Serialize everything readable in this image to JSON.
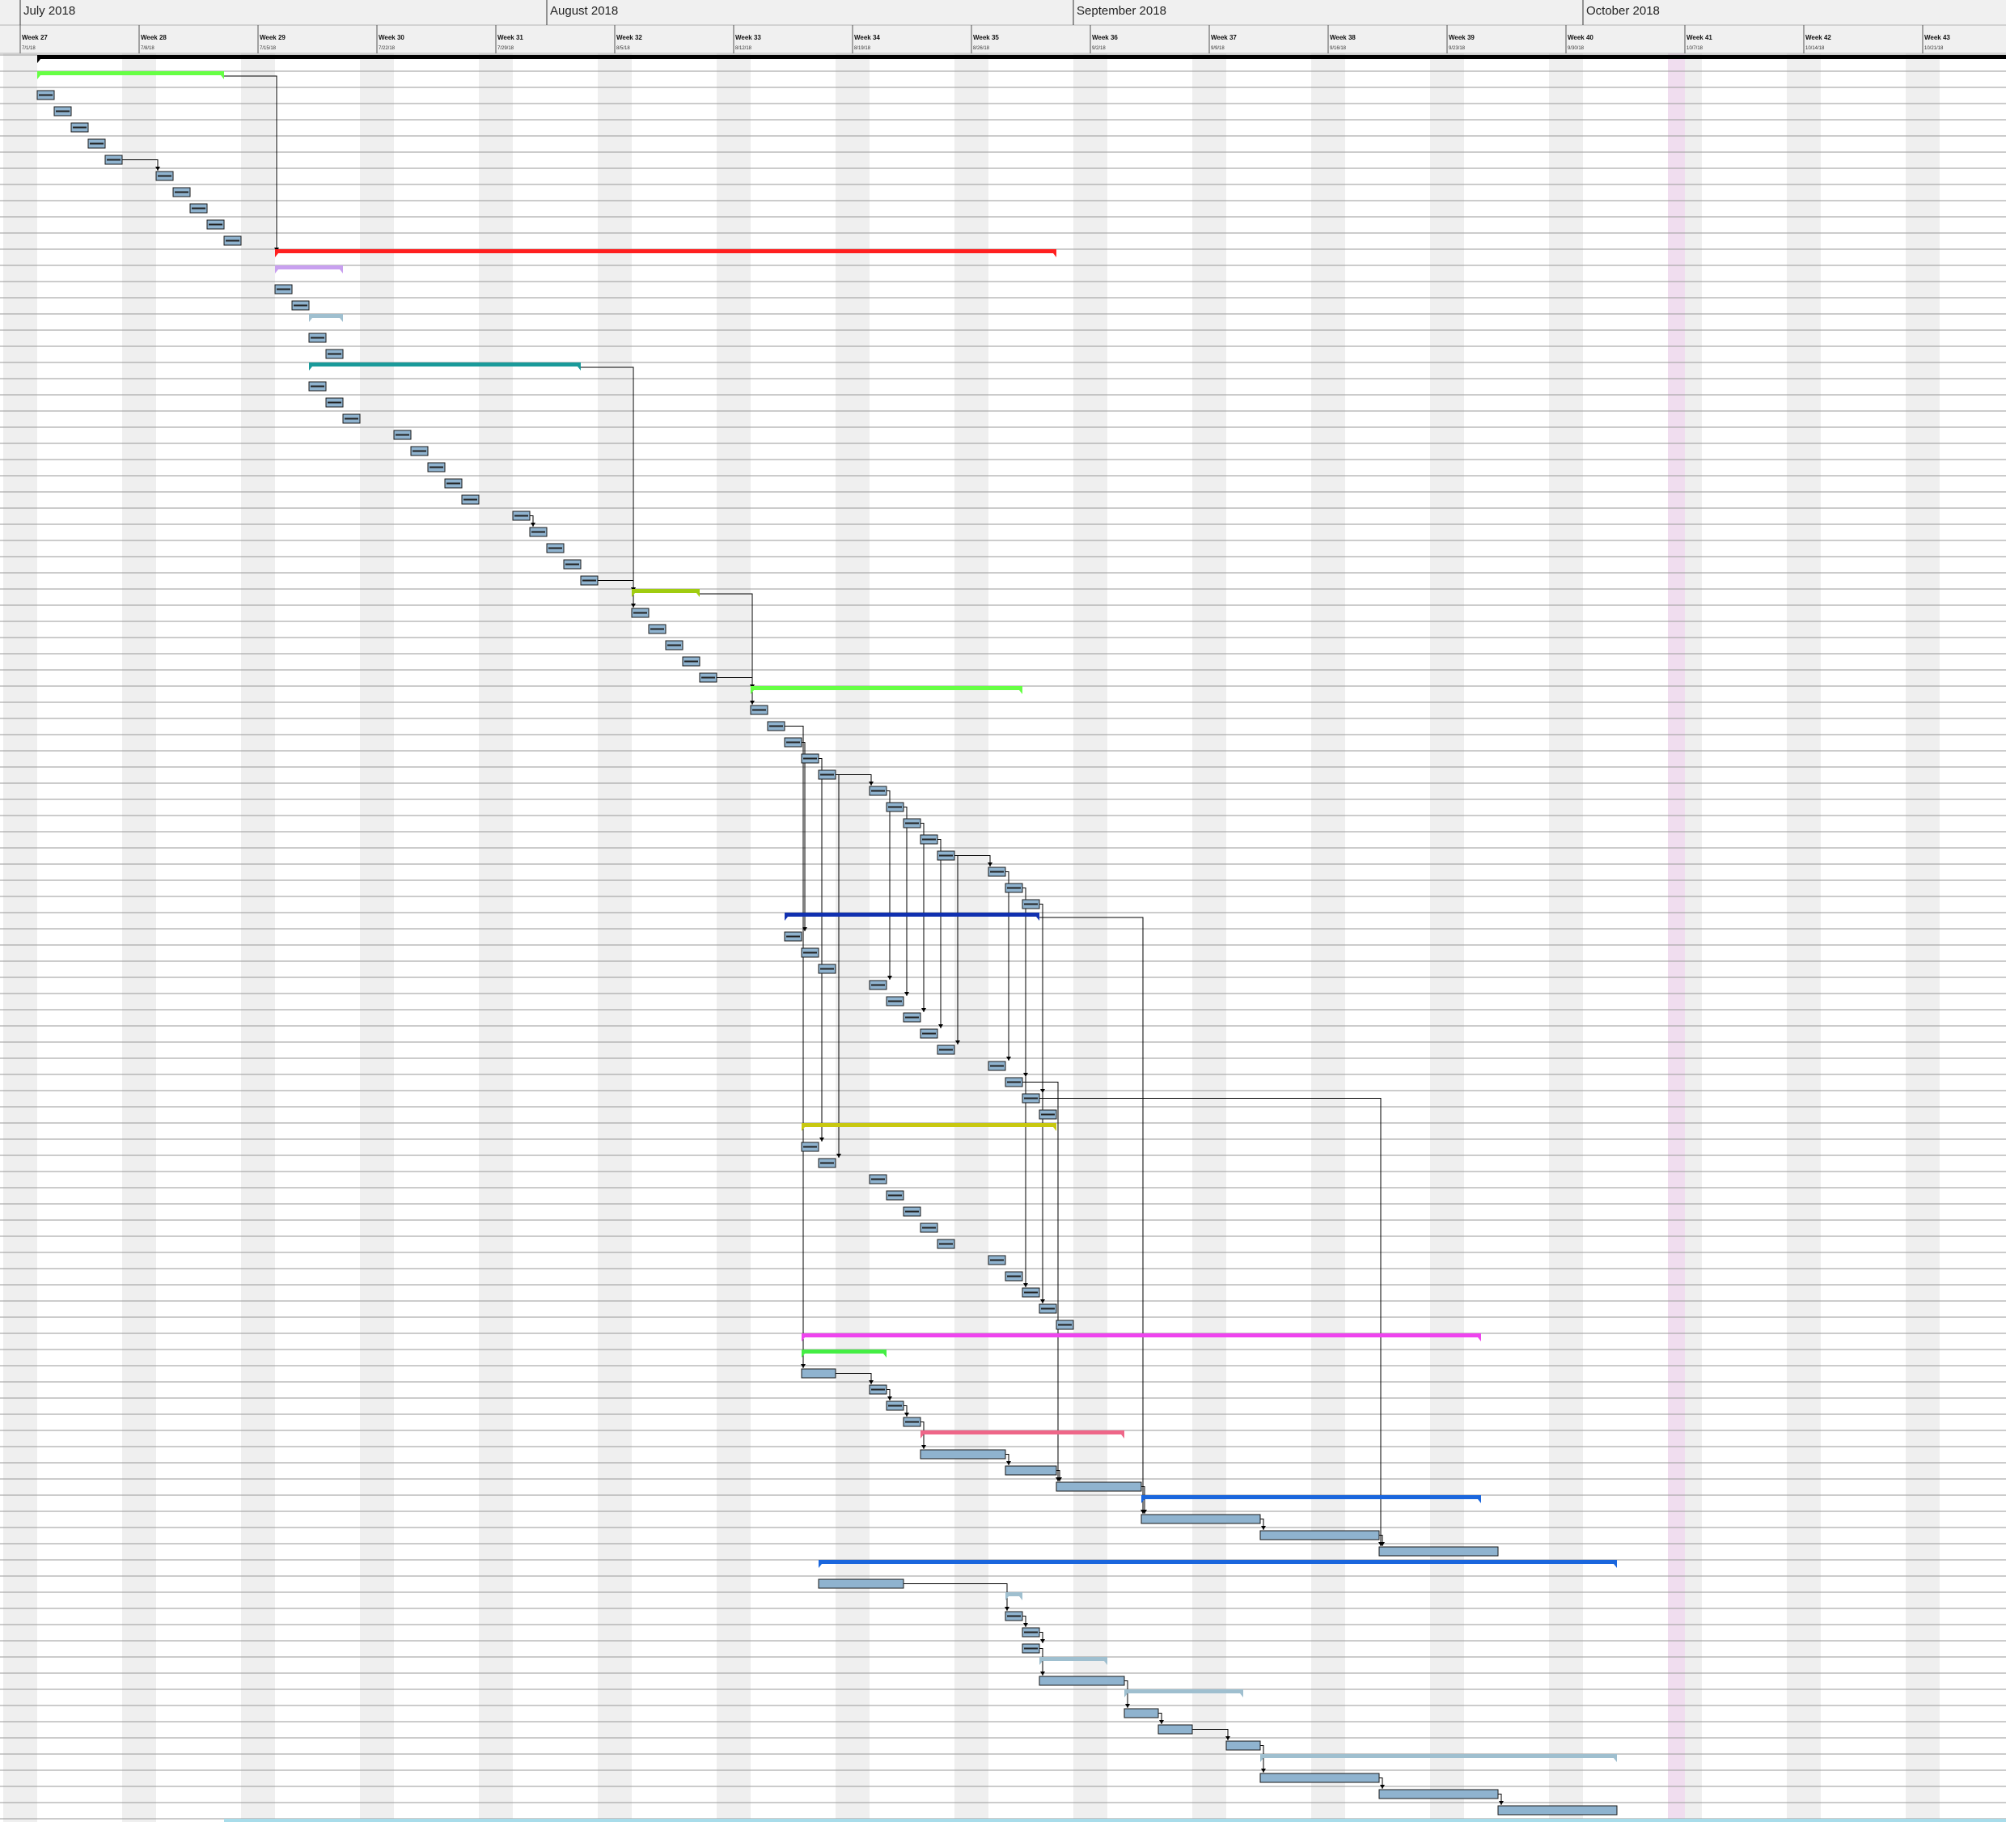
{
  "timeline": {
    "months": [
      {
        "label": "July 2018",
        "date": "2018-07-01"
      },
      {
        "label": "August 2018",
        "date": "2018-08-01"
      },
      {
        "label": "September 2018",
        "date": "2018-09-01"
      },
      {
        "label": "October 2018",
        "date": "2018-10-01"
      }
    ],
    "weeks": [
      {
        "label": "Week 27",
        "date_label": "7/1/18",
        "date": "2018-07-01"
      },
      {
        "label": "Week 28",
        "date_label": "7/8/18",
        "date": "2018-07-08"
      },
      {
        "label": "Week 29",
        "date_label": "7/15/18",
        "date": "2018-07-15"
      },
      {
        "label": "Week 30",
        "date_label": "7/22/18",
        "date": "2018-07-22"
      },
      {
        "label": "Week 31",
        "date_label": "7/29/18",
        "date": "2018-07-29"
      },
      {
        "label": "Week 32",
        "date_label": "8/5/18",
        "date": "2018-08-05"
      },
      {
        "label": "Week 33",
        "date_label": "8/12/18",
        "date": "2018-08-12"
      },
      {
        "label": "Week 34",
        "date_label": "8/19/18",
        "date": "2018-08-19"
      },
      {
        "label": "Week 35",
        "date_label": "8/26/18",
        "date": "2018-08-26"
      },
      {
        "label": "Week 36",
        "date_label": "9/2/18",
        "date": "2018-09-02"
      },
      {
        "label": "Week 37",
        "date_label": "9/9/18",
        "date": "2018-09-09"
      },
      {
        "label": "Week 38",
        "date_label": "9/16/18",
        "date": "2018-09-16"
      },
      {
        "label": "Week 39",
        "date_label": "9/23/18",
        "date": "2018-09-23"
      },
      {
        "label": "Week 40",
        "date_label": "9/30/18",
        "date": "2018-09-30"
      },
      {
        "label": "Week 41",
        "date_label": "10/7/18",
        "date": "2018-10-07"
      },
      {
        "label": "Week 42",
        "date_label": "10/14/18",
        "date": "2018-10-14"
      },
      {
        "label": "Week 43",
        "date_label": "10/21/18",
        "date": "2018-10-21"
      }
    ]
  },
  "colors": {
    "task_fill": "#8fb3cf",
    "task_stroke": "#1a1a1a",
    "weekend_shade": "#efefef",
    "today_marker": "#f0ddef",
    "header_bg": "#f0f0f0",
    "row_line": "#9a9a9a",
    "link": "#000000"
  },
  "chart_data": {
    "type": "gantt",
    "title": "",
    "xlabel": "",
    "ylabel": "",
    "xlim": [
      "2018-07-01",
      "2018-10-27"
    ],
    "grid": true,
    "legend": "none",
    "marker_date": "2018-10-06",
    "tasks": [
      {
        "row": 0,
        "kind": "project",
        "start": "2018-07-02",
        "end": "2018-10-27",
        "color": "#000000"
      },
      {
        "row": 1,
        "kind": "summary",
        "start": "2018-07-02",
        "end": "2018-07-13",
        "color": "#66ff44"
      },
      {
        "row": 2,
        "kind": "task",
        "start": "2018-07-02",
        "end": "2018-07-03"
      },
      {
        "row": 3,
        "kind": "task",
        "start": "2018-07-03",
        "end": "2018-07-04"
      },
      {
        "row": 4,
        "kind": "task",
        "start": "2018-07-04",
        "end": "2018-07-05"
      },
      {
        "row": 5,
        "kind": "task",
        "start": "2018-07-05",
        "end": "2018-07-06"
      },
      {
        "row": 6,
        "kind": "task",
        "start": "2018-07-06",
        "end": "2018-07-07"
      },
      {
        "row": 7,
        "kind": "task",
        "start": "2018-07-09",
        "end": "2018-07-10"
      },
      {
        "row": 8,
        "kind": "task",
        "start": "2018-07-10",
        "end": "2018-07-11"
      },
      {
        "row": 9,
        "kind": "task",
        "start": "2018-07-11",
        "end": "2018-07-12"
      },
      {
        "row": 10,
        "kind": "task",
        "start": "2018-07-12",
        "end": "2018-07-13"
      },
      {
        "row": 11,
        "kind": "task",
        "start": "2018-07-13",
        "end": "2018-07-14"
      },
      {
        "row": 12,
        "kind": "summary",
        "start": "2018-07-16",
        "end": "2018-08-31",
        "color": "#ff2020"
      },
      {
        "row": 13,
        "kind": "summary",
        "start": "2018-07-16",
        "end": "2018-07-20",
        "color": "#c8a0ef"
      },
      {
        "row": 14,
        "kind": "task",
        "start": "2018-07-16",
        "end": "2018-07-17"
      },
      {
        "row": 15,
        "kind": "task",
        "start": "2018-07-17",
        "end": "2018-07-18"
      },
      {
        "row": 16,
        "kind": "summary",
        "start": "2018-07-18",
        "end": "2018-07-20",
        "color": "#9fbfcf"
      },
      {
        "row": 17,
        "kind": "task",
        "start": "2018-07-18",
        "end": "2018-07-19"
      },
      {
        "row": 18,
        "kind": "task",
        "start": "2018-07-19",
        "end": "2018-07-20"
      },
      {
        "row": 19,
        "kind": "summary",
        "start": "2018-07-18",
        "end": "2018-08-03",
        "color": "#1a9a9a"
      },
      {
        "row": 20,
        "kind": "task",
        "start": "2018-07-18",
        "end": "2018-07-19"
      },
      {
        "row": 21,
        "kind": "task",
        "start": "2018-07-19",
        "end": "2018-07-20"
      },
      {
        "row": 22,
        "kind": "task",
        "start": "2018-07-20",
        "end": "2018-07-21"
      },
      {
        "row": 23,
        "kind": "task",
        "start": "2018-07-23",
        "end": "2018-07-24"
      },
      {
        "row": 24,
        "kind": "task",
        "start": "2018-07-24",
        "end": "2018-07-25"
      },
      {
        "row": 25,
        "kind": "task",
        "start": "2018-07-25",
        "end": "2018-07-26"
      },
      {
        "row": 26,
        "kind": "task",
        "start": "2018-07-26",
        "end": "2018-07-27"
      },
      {
        "row": 27,
        "kind": "task",
        "start": "2018-07-27",
        "end": "2018-07-28"
      },
      {
        "row": 28,
        "kind": "task",
        "start": "2018-07-30",
        "end": "2018-07-31"
      },
      {
        "row": 29,
        "kind": "task",
        "start": "2018-07-31",
        "end": "2018-08-01"
      },
      {
        "row": 30,
        "kind": "task",
        "start": "2018-08-01",
        "end": "2018-08-02"
      },
      {
        "row": 31,
        "kind": "task",
        "start": "2018-08-02",
        "end": "2018-08-03"
      },
      {
        "row": 32,
        "kind": "task",
        "start": "2018-08-03",
        "end": "2018-08-04"
      },
      {
        "row": 33,
        "kind": "summary",
        "start": "2018-08-06",
        "end": "2018-08-10",
        "color": "#a0cc10"
      },
      {
        "row": 34,
        "kind": "task",
        "start": "2018-08-06",
        "end": "2018-08-07"
      },
      {
        "row": 35,
        "kind": "task",
        "start": "2018-08-07",
        "end": "2018-08-08"
      },
      {
        "row": 36,
        "kind": "task",
        "start": "2018-08-08",
        "end": "2018-08-09"
      },
      {
        "row": 37,
        "kind": "task",
        "start": "2018-08-09",
        "end": "2018-08-10"
      },
      {
        "row": 38,
        "kind": "task",
        "start": "2018-08-10",
        "end": "2018-08-11"
      },
      {
        "row": 39,
        "kind": "summary",
        "start": "2018-08-13",
        "end": "2018-08-29",
        "color": "#66ff44"
      },
      {
        "row": 40,
        "kind": "task",
        "start": "2018-08-13",
        "end": "2018-08-14"
      },
      {
        "row": 41,
        "kind": "task",
        "start": "2018-08-14",
        "end": "2018-08-15"
      },
      {
        "row": 42,
        "kind": "task",
        "start": "2018-08-15",
        "end": "2018-08-16"
      },
      {
        "row": 43,
        "kind": "task",
        "start": "2018-08-16",
        "end": "2018-08-17"
      },
      {
        "row": 44,
        "kind": "task",
        "start": "2018-08-17",
        "end": "2018-08-18"
      },
      {
        "row": 45,
        "kind": "task",
        "start": "2018-08-20",
        "end": "2018-08-21"
      },
      {
        "row": 46,
        "kind": "task",
        "start": "2018-08-21",
        "end": "2018-08-22"
      },
      {
        "row": 47,
        "kind": "task",
        "start": "2018-08-22",
        "end": "2018-08-23"
      },
      {
        "row": 48,
        "kind": "task",
        "start": "2018-08-23",
        "end": "2018-08-24"
      },
      {
        "row": 49,
        "kind": "task",
        "start": "2018-08-24",
        "end": "2018-08-25"
      },
      {
        "row": 50,
        "kind": "task",
        "start": "2018-08-27",
        "end": "2018-08-28"
      },
      {
        "row": 51,
        "kind": "task",
        "start": "2018-08-28",
        "end": "2018-08-29"
      },
      {
        "row": 52,
        "kind": "task",
        "start": "2018-08-29",
        "end": "2018-08-30"
      },
      {
        "row": 53,
        "kind": "summary",
        "start": "2018-08-15",
        "end": "2018-08-30",
        "color": "#1030b0"
      },
      {
        "row": 54,
        "kind": "task",
        "start": "2018-08-15",
        "end": "2018-08-16"
      },
      {
        "row": 55,
        "kind": "task",
        "start": "2018-08-16",
        "end": "2018-08-17"
      },
      {
        "row": 56,
        "kind": "task",
        "start": "2018-08-17",
        "end": "2018-08-18"
      },
      {
        "row": 57,
        "kind": "task",
        "start": "2018-08-20",
        "end": "2018-08-21"
      },
      {
        "row": 58,
        "kind": "task",
        "start": "2018-08-21",
        "end": "2018-08-22"
      },
      {
        "row": 59,
        "kind": "task",
        "start": "2018-08-22",
        "end": "2018-08-23"
      },
      {
        "row": 60,
        "kind": "task",
        "start": "2018-08-23",
        "end": "2018-08-24"
      },
      {
        "row": 61,
        "kind": "task",
        "start": "2018-08-24",
        "end": "2018-08-25"
      },
      {
        "row": 62,
        "kind": "task",
        "start": "2018-08-27",
        "end": "2018-08-28"
      },
      {
        "row": 63,
        "kind": "task",
        "start": "2018-08-28",
        "end": "2018-08-29"
      },
      {
        "row": 64,
        "kind": "task",
        "start": "2018-08-29",
        "end": "2018-08-30"
      },
      {
        "row": 65,
        "kind": "task",
        "start": "2018-08-30",
        "end": "2018-08-31"
      },
      {
        "row": 66,
        "kind": "summary",
        "start": "2018-08-16",
        "end": "2018-08-31",
        "color": "#c8c810"
      },
      {
        "row": 67,
        "kind": "task",
        "start": "2018-08-16",
        "end": "2018-08-17"
      },
      {
        "row": 68,
        "kind": "task",
        "start": "2018-08-17",
        "end": "2018-08-18"
      },
      {
        "row": 69,
        "kind": "task",
        "start": "2018-08-20",
        "end": "2018-08-21"
      },
      {
        "row": 70,
        "kind": "task",
        "start": "2018-08-21",
        "end": "2018-08-22"
      },
      {
        "row": 71,
        "kind": "task",
        "start": "2018-08-22",
        "end": "2018-08-23"
      },
      {
        "row": 72,
        "kind": "task",
        "start": "2018-08-23",
        "end": "2018-08-24"
      },
      {
        "row": 73,
        "kind": "task",
        "start": "2018-08-24",
        "end": "2018-08-25"
      },
      {
        "row": 74,
        "kind": "task",
        "start": "2018-08-27",
        "end": "2018-08-28"
      },
      {
        "row": 75,
        "kind": "task",
        "start": "2018-08-28",
        "end": "2018-08-29"
      },
      {
        "row": 76,
        "kind": "task",
        "start": "2018-08-29",
        "end": "2018-08-30"
      },
      {
        "row": 77,
        "kind": "task",
        "start": "2018-08-30",
        "end": "2018-08-31"
      },
      {
        "row": 78,
        "kind": "task",
        "start": "2018-08-31",
        "end": "2018-09-01"
      },
      {
        "row": 79,
        "kind": "summary",
        "start": "2018-08-16",
        "end": "2018-09-25",
        "color": "#ee44ee"
      },
      {
        "row": 80,
        "kind": "summary",
        "start": "2018-08-16",
        "end": "2018-08-21",
        "color": "#44ee44"
      },
      {
        "row": 81,
        "kind": "task",
        "start": "2018-08-16",
        "end": "2018-08-18"
      },
      {
        "row": 82,
        "kind": "task",
        "start": "2018-08-20",
        "end": "2018-08-21"
      },
      {
        "row": 83,
        "kind": "task",
        "start": "2018-08-21",
        "end": "2018-08-22"
      },
      {
        "row": 84,
        "kind": "task",
        "start": "2018-08-22",
        "end": "2018-08-23"
      },
      {
        "row": 85,
        "kind": "summary",
        "start": "2018-08-23",
        "end": "2018-09-04",
        "color": "#ee6688"
      },
      {
        "row": 86,
        "kind": "task",
        "start": "2018-08-23",
        "end": "2018-08-28"
      },
      {
        "row": 87,
        "kind": "task",
        "start": "2018-08-28",
        "end": "2018-08-31"
      },
      {
        "row": 88,
        "kind": "task",
        "start": "2018-08-31",
        "end": "2018-09-05"
      },
      {
        "row": 89,
        "kind": "summary",
        "start": "2018-09-05",
        "end": "2018-09-25",
        "color": "#1a66dd"
      },
      {
        "row": 90,
        "kind": "task",
        "start": "2018-09-05",
        "end": "2018-09-12"
      },
      {
        "row": 91,
        "kind": "task",
        "start": "2018-09-12",
        "end": "2018-09-19"
      },
      {
        "row": 92,
        "kind": "task",
        "start": "2018-09-19",
        "end": "2018-09-26"
      },
      {
        "row": 93,
        "kind": "summary",
        "start": "2018-08-17",
        "end": "2018-10-03",
        "color": "#1a66dd"
      },
      {
        "row": 94,
        "kind": "task",
        "start": "2018-08-17",
        "end": "2018-08-22"
      },
      {
        "row": 95,
        "kind": "summary",
        "start": "2018-08-28",
        "end": "2018-08-29",
        "color": "#9fbfcf"
      },
      {
        "row": 96,
        "kind": "task",
        "start": "2018-08-28",
        "end": "2018-08-29"
      },
      {
        "row": 97,
        "kind": "task",
        "start": "2018-08-29",
        "end": "2018-08-30"
      },
      {
        "row": 98,
        "kind": "task",
        "start": "2018-08-29",
        "end": "2018-08-30"
      },
      {
        "row": 99,
        "kind": "summary",
        "start": "2018-08-30",
        "end": "2018-09-03",
        "color": "#9fbfcf"
      },
      {
        "row": 100,
        "kind": "task",
        "start": "2018-08-30",
        "end": "2018-09-04"
      },
      {
        "row": 101,
        "kind": "summary",
        "start": "2018-09-04",
        "end": "2018-09-11",
        "color": "#9fbfcf"
      },
      {
        "row": 102,
        "kind": "task",
        "start": "2018-09-04",
        "end": "2018-09-06"
      },
      {
        "row": 103,
        "kind": "task",
        "start": "2018-09-06",
        "end": "2018-09-08"
      },
      {
        "row": 104,
        "kind": "task",
        "start": "2018-09-10",
        "end": "2018-09-12"
      },
      {
        "row": 105,
        "kind": "summary",
        "start": "2018-09-12",
        "end": "2018-10-03",
        "color": "#9fbfcf"
      },
      {
        "row": 106,
        "kind": "task",
        "start": "2018-09-12",
        "end": "2018-09-19"
      },
      {
        "row": 107,
        "kind": "task",
        "start": "2018-09-19",
        "end": "2018-09-26"
      },
      {
        "row": 108,
        "kind": "task",
        "start": "2018-09-26",
        "end": "2018-10-03"
      },
      {
        "row": 109,
        "kind": "summary",
        "start": "2018-07-13",
        "end": "2018-10-27",
        "color": "#a8dcea"
      }
    ],
    "links": [
      [
        1,
        12
      ],
      [
        6,
        7
      ],
      [
        19,
        33
      ],
      [
        19,
        34
      ],
      [
        28,
        29
      ],
      [
        32,
        33
      ],
      [
        33,
        39
      ],
      [
        38,
        40
      ],
      [
        44,
        45
      ],
      [
        49,
        50
      ],
      [
        42,
        54
      ],
      [
        43,
        67
      ],
      [
        44,
        68
      ],
      [
        45,
        57
      ],
      [
        46,
        58
      ],
      [
        47,
        59
      ],
      [
        48,
        60
      ],
      [
        49,
        61
      ],
      [
        50,
        62
      ],
      [
        51,
        63
      ],
      [
        52,
        64
      ],
      [
        51,
        76
      ],
      [
        52,
        77
      ],
      [
        53,
        90
      ],
      [
        63,
        88
      ],
      [
        64,
        92
      ],
      [
        41,
        81
      ],
      [
        81,
        82
      ],
      [
        82,
        83
      ],
      [
        83,
        84
      ],
      [
        84,
        86
      ],
      [
        86,
        87
      ],
      [
        87,
        88
      ],
      [
        88,
        90
      ],
      [
        90,
        91
      ],
      [
        91,
        92
      ],
      [
        94,
        96
      ],
      [
        96,
        97
      ],
      [
        97,
        98
      ],
      [
        98,
        100
      ],
      [
        100,
        102
      ],
      [
        102,
        103
      ],
      [
        103,
        104
      ],
      [
        104,
        106
      ],
      [
        106,
        107
      ],
      [
        107,
        108
      ]
    ]
  }
}
